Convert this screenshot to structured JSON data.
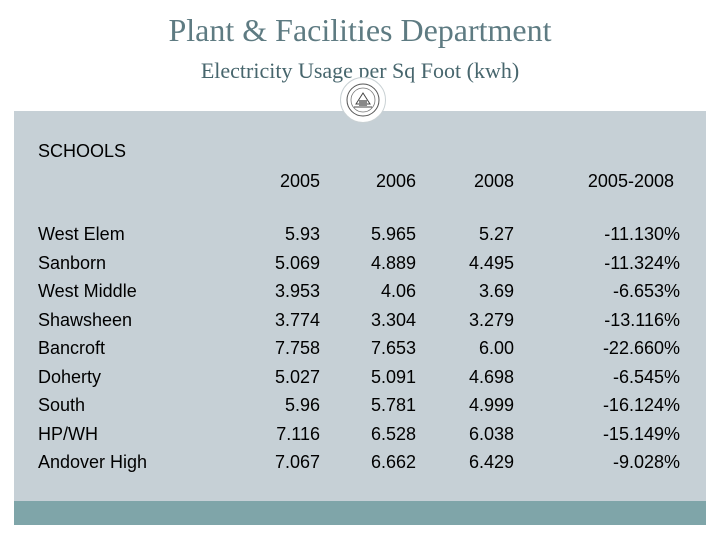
{
  "header": {
    "title": "Plant & Facilities Department",
    "subtitle": "Electricity Usage per Sq Foot (kwh)",
    "logo_icon": "town-seal-icon"
  },
  "table": {
    "section_label": "SCHOOLS",
    "columns": [
      "2005",
      "2006",
      "2008",
      "2005-2008"
    ],
    "rows": [
      {
        "school": "West Elem",
        "y2005": "5.93",
        "y2006": "5.965",
        "y2008": "5.27",
        "change": "-11.130%"
      },
      {
        "school": "Sanborn",
        "y2005": "5.069",
        "y2006": "4.889",
        "y2008": "4.495",
        "change": "-11.324%"
      },
      {
        "school": "West Middle",
        "y2005": "3.953",
        "y2006": "4.06",
        "y2008": "3.69",
        "change": "-6.653%"
      },
      {
        "school": "Shawsheen",
        "y2005": "3.774",
        "y2006": "3.304",
        "y2008": "3.279",
        "change": "-13.116%"
      },
      {
        "school": "Bancroft",
        "y2005": "7.758",
        "y2006": "7.653",
        "y2008": "6.00",
        "change": "-22.660%"
      },
      {
        "school": "Doherty",
        "y2005": "5.027",
        "y2006": "5.091",
        "y2008": "4.698",
        "change": "-6.545%"
      },
      {
        "school": "South",
        "y2005": "5.96",
        "y2006": "5.781",
        "y2008": "4.999",
        "change": "-16.124%"
      },
      {
        "school": "HP/WH",
        "y2005": "7.116",
        "y2006": "6.528",
        "y2008": "6.038",
        "change": "-15.149%"
      },
      {
        "school": "Andover High",
        "y2005": "7.067",
        "y2006": "6.662",
        "y2008": "6.429",
        "change": "-9.028%"
      }
    ]
  },
  "colors": {
    "title": "#5e7b82",
    "panel": "#c6d0d6",
    "footer_bar": "#7fa5a9"
  }
}
